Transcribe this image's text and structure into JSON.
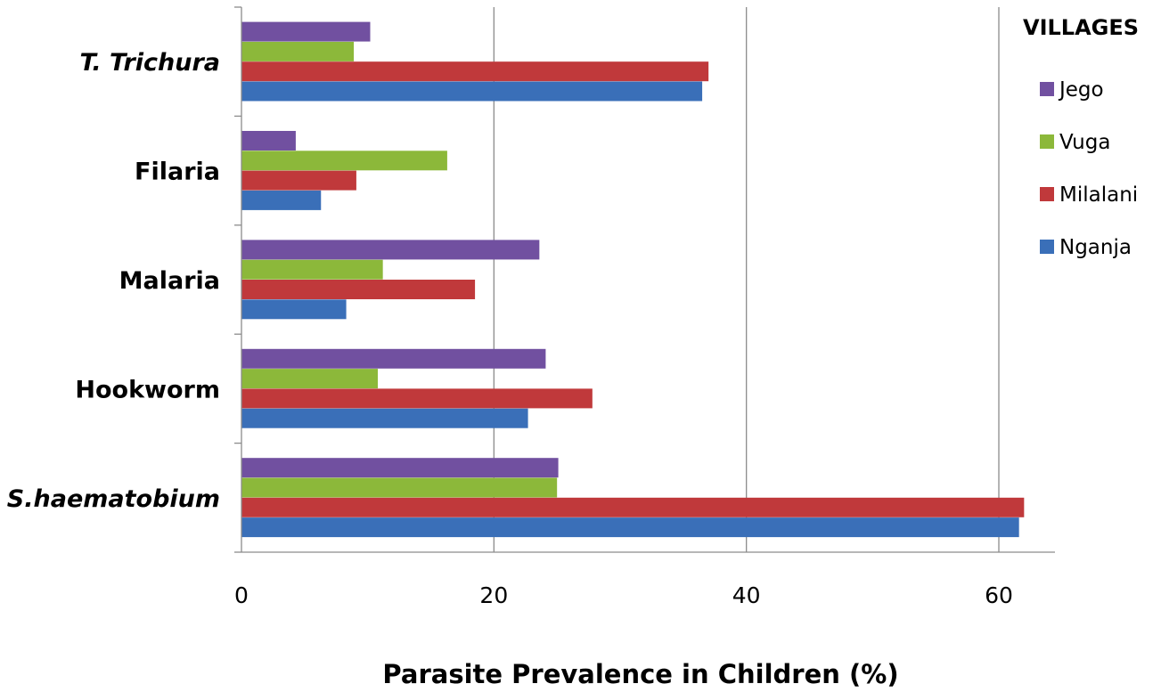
{
  "chart_data": {
    "type": "bar",
    "orientation": "horizontal",
    "categories": [
      "S.haematobium",
      "Hookworm",
      "Malaria",
      "Filaria",
      "T. Trichura"
    ],
    "italic_categories": [
      "S.haematobium",
      "T. Trichura"
    ],
    "series": [
      {
        "name": "Nganja",
        "color": "#3a6fb8",
        "values": [
          61.6,
          22.7,
          8.3,
          6.3,
          36.5
        ]
      },
      {
        "name": "Milalani",
        "color": "#c0393b",
        "values": [
          62.0,
          27.8,
          18.5,
          9.1,
          37.0
        ]
      },
      {
        "name": "Vuga",
        "color": "#8cb83a",
        "values": [
          25.0,
          10.8,
          11.2,
          16.3,
          8.9
        ]
      },
      {
        "name": "Jego",
        "color": "#7150a0",
        "values": [
          25.1,
          24.1,
          23.6,
          4.3,
          10.2
        ]
      }
    ],
    "xlabel": "Parasite Prevalence in Children (%)",
    "ylabel": "",
    "title": "",
    "xlim": [
      0,
      65
    ],
    "xticks": [
      0,
      20,
      40,
      60
    ],
    "grid": "vertical",
    "legend": {
      "title": "VILLAGES",
      "position": "right",
      "order": [
        "Jego",
        "Vuga",
        "Milalani",
        "Nganja"
      ]
    }
  }
}
